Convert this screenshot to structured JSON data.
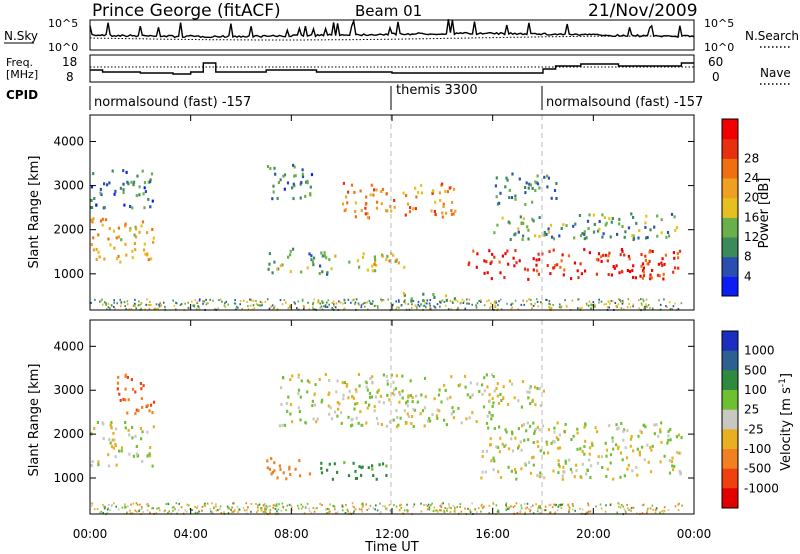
{
  "header": {
    "station": "Prince George (fitACF)",
    "beam": "Beam 01",
    "date": "21/Nov/2009"
  },
  "noise_panel": {
    "left_label": "N.Sky",
    "left_ticks": [
      "10^5",
      "10^0"
    ],
    "right_ticks": [
      "10^5",
      "10^0"
    ],
    "right_label": "N.Search"
  },
  "freq_panel": {
    "left_label_1": "Freq.",
    "left_label_2": "[MHz]",
    "left_ticks": [
      "18",
      "8"
    ],
    "right_ticks": [
      "60",
      "0"
    ],
    "right_label": "Nave"
  },
  "cpid_panel": {
    "label": "CPID",
    "segments": [
      {
        "name": "normalsound (fast) -157",
        "start_hour": 0.0
      },
      {
        "name": "themis 3300",
        "start_hour": 12.0
      },
      {
        "name": "normalsound (fast) -157",
        "start_hour": 18.0
      }
    ]
  },
  "axes": {
    "ylabel": "Slant Range [km]",
    "xlabel": "Time UT",
    "y_ticks": [
      "1000",
      "2000",
      "3000",
      "4000"
    ],
    "x_ticks": [
      "00:00",
      "04:00",
      "08:00",
      "12:00",
      "16:00",
      "20:00",
      "00:00"
    ]
  },
  "power_scale": {
    "label": "Power [dB]",
    "ticks": [
      "4",
      "8",
      "12",
      "16",
      "20",
      "24",
      "28"
    ],
    "colors": [
      "#0a1ef5",
      "#2b4fb0",
      "#3a8a5a",
      "#6ab04a",
      "#e6c020",
      "#f0a020",
      "#f07010",
      "#e83010",
      "#f00000"
    ]
  },
  "velocity_scale": {
    "label": "Velocity [m s^-1]",
    "ticks": [
      "1000",
      "500",
      "100",
      "25",
      "-25",
      "-100",
      "-500",
      "-1000"
    ],
    "colors": [
      "#1a2fc0",
      "#2b6090",
      "#2f8a40",
      "#6ec030",
      "#c8c8c0",
      "#e8b020",
      "#f08020",
      "#f04010",
      "#e00000"
    ]
  },
  "chart_data": {
    "type": "heatmap",
    "title": "Prince George (fitACF)  Beam 01  21/Nov/2009",
    "xlabel": "Time UT",
    "ylabel": "Slant Range [km]",
    "xlim_hours": [
      0,
      24
    ],
    "ylim_km": [
      180,
      4600
    ],
    "grid": false,
    "panels": [
      {
        "quantity": "Power [dB]",
        "clim": [
          0,
          30
        ],
        "echo_regions": [
          {
            "t": [
              0.0,
              2.5
            ],
            "r": [
              1300,
              2300
            ],
            "value": 18
          },
          {
            "t": [
              0.0,
              2.5
            ],
            "r": [
              2500,
              3400
            ],
            "value": 8
          },
          {
            "t": [
              7.0,
              9.5
            ],
            "r": [
              1000,
              1600
            ],
            "value": 10
          },
          {
            "t": [
              7.0,
              9.0
            ],
            "r": [
              2700,
              3500
            ],
            "value": 8
          },
          {
            "t": [
              9.5,
              12.5
            ],
            "r": [
              1100,
              1500
            ],
            "value": 16
          },
          {
            "t": [
              10.0,
              14.5
            ],
            "r": [
              2300,
              3100
            ],
            "value": 20
          },
          {
            "t": [
              12.0,
              14.5
            ],
            "r": [
              400,
              600
            ],
            "value": 12
          },
          {
            "t": [
              15.0,
              23.5
            ],
            "r": [
              900,
              1600
            ],
            "value": 26
          },
          {
            "t": [
              16.0,
              23.5
            ],
            "r": [
              1800,
              2400
            ],
            "value": 10
          },
          {
            "t": [
              16.0,
              18.5
            ],
            "r": [
              2600,
              3300
            ],
            "value": 8
          }
        ]
      },
      {
        "quantity": "Velocity [m s^-1]",
        "clim": [
          -1000,
          1000
        ],
        "echo_regions": [
          {
            "t": [
              0.0,
              2.5
            ],
            "r": [
              1300,
              2300
            ],
            "value": 0
          },
          {
            "t": [
              1.0,
              2.5
            ],
            "r": [
              2500,
              3400
            ],
            "value": -500
          },
          {
            "t": [
              7.0,
              8.8
            ],
            "r": [
              1000,
              1500
            ],
            "value": -300
          },
          {
            "t": [
              9.0,
              12.0
            ],
            "r": [
              1000,
              1400
            ],
            "value": 150
          },
          {
            "t": [
              7.5,
              16.0
            ],
            "r": [
              2200,
              3400
            ],
            "value": 0
          },
          {
            "t": [
              15.5,
              23.5
            ],
            "r": [
              1000,
              2300
            ],
            "value": 0
          },
          {
            "t": [
              16.0,
              18.0
            ],
            "r": [
              2600,
              3300
            ],
            "value": 0
          }
        ]
      }
    ]
  }
}
